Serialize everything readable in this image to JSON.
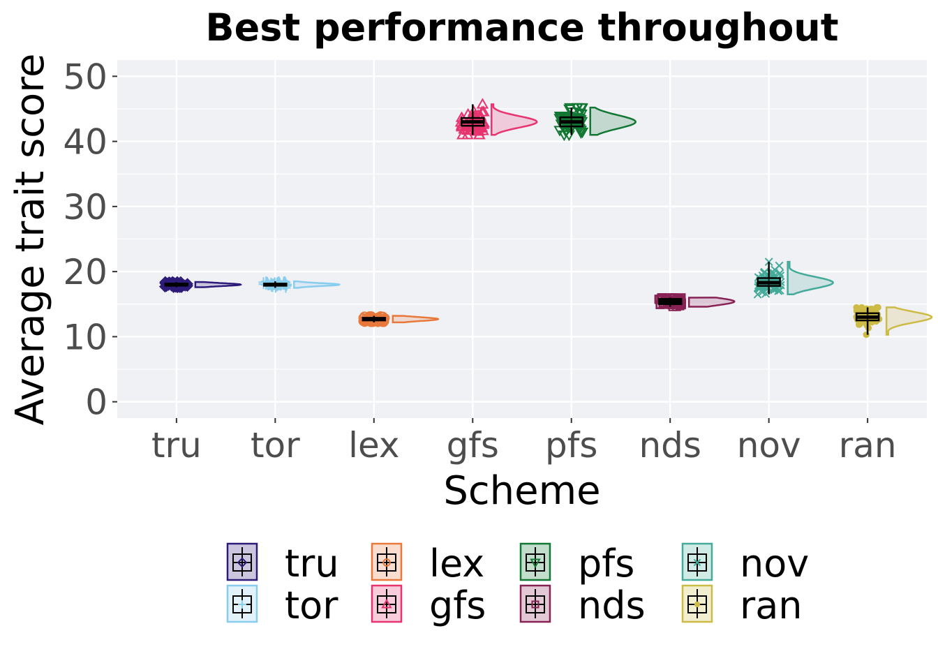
{
  "chart_data": {
    "type": "raincloud",
    "title": "Best performance throughout",
    "xlabel": "Scheme",
    "ylabel": "Average trait score",
    "ylim": [
      -2.5,
      52.5
    ],
    "yticks": [
      0,
      10,
      20,
      30,
      40,
      50
    ],
    "categories": [
      "tru",
      "tor",
      "lex",
      "gfs",
      "pfs",
      "nds",
      "nov",
      "ran"
    ],
    "grid": true,
    "legend_position": "bottom",
    "legend_columns": 4,
    "background": "#f0f1f5",
    "series": [
      {
        "name": "tru",
        "color": "#2e1a78",
        "marker": "diamond",
        "min": 17.6,
        "q1": 17.85,
        "median": 18.0,
        "q3": 18.15,
        "max": 18.4,
        "spread_min": 17.6,
        "spread_max": 18.4
      },
      {
        "name": "tor",
        "color": "#88ccee",
        "marker": "plus",
        "min": 17.5,
        "q1": 17.85,
        "median": 18.0,
        "q3": 18.15,
        "max": 18.5,
        "spread_min": 17.5,
        "spread_max": 18.5
      },
      {
        "name": "lex",
        "color": "#e8793a",
        "marker": "circle",
        "min": 12.2,
        "q1": 12.5,
        "median": 12.7,
        "q3": 12.9,
        "max": 13.2,
        "spread_min": 12.2,
        "spread_max": 13.2
      },
      {
        "name": "gfs",
        "color": "#e8336e",
        "marker": "triangle-up",
        "min": 41.0,
        "q1": 42.4,
        "median": 43.0,
        "q3": 43.6,
        "max": 45.7,
        "spread_min": 41.0,
        "spread_max": 45.7
      },
      {
        "name": "pfs",
        "color": "#117733",
        "marker": "triangle-down",
        "min": 41.0,
        "q1": 42.3,
        "median": 43.0,
        "q3": 43.7,
        "max": 45.2,
        "spread_min": 41.0,
        "spread_max": 45.2
      },
      {
        "name": "nds",
        "color": "#882255",
        "marker": "square",
        "min": 14.6,
        "q1": 15.0,
        "median": 15.4,
        "q3": 15.8,
        "max": 16.0,
        "spread_min": 14.6,
        "spread_max": 16.0
      },
      {
        "name": "nov",
        "color": "#44aa99",
        "marker": "cross",
        "min": 16.5,
        "q1": 17.8,
        "median": 18.3,
        "q3": 19.0,
        "max": 21.5,
        "spread_min": 16.5,
        "spread_max": 21.5
      },
      {
        "name": "ran",
        "color": "#ccbb44",
        "marker": "dot",
        "min": 10.3,
        "q1": 12.5,
        "median": 13.0,
        "q3": 13.6,
        "max": 14.5,
        "spread_min": 10.3,
        "spread_max": 14.5
      }
    ]
  }
}
